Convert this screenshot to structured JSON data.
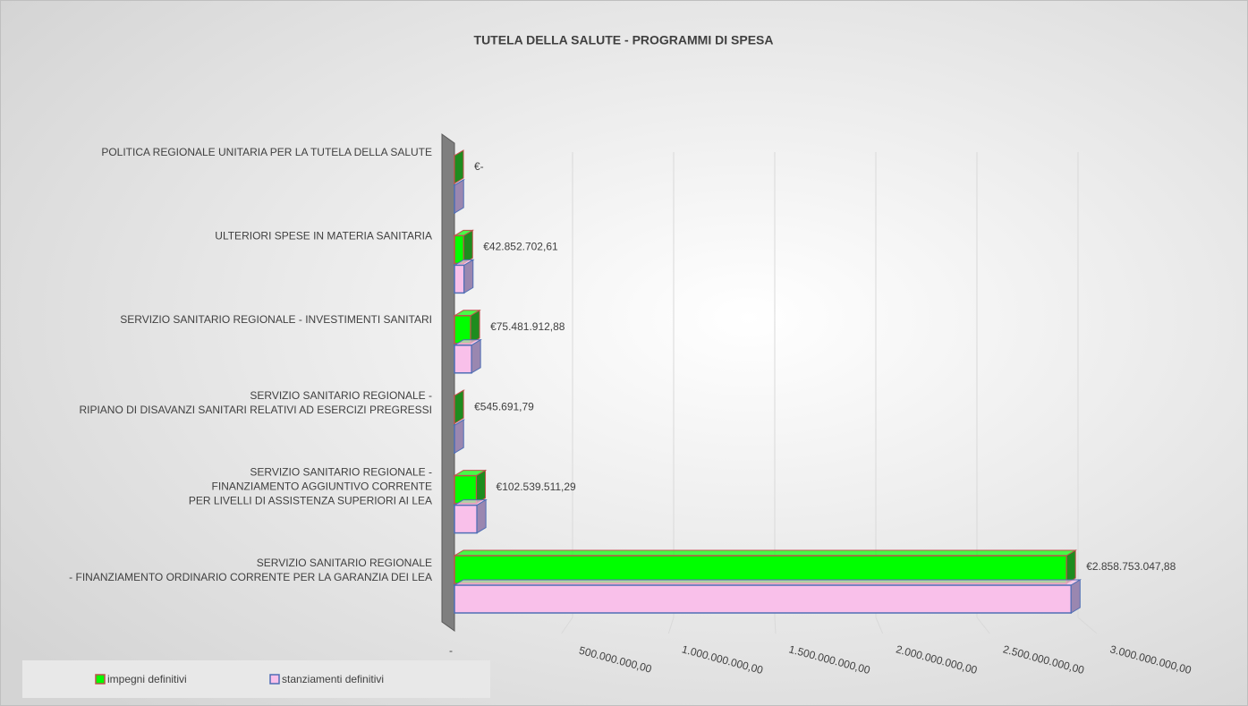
{
  "chart_data": {
    "type": "bar3d-horizontal",
    "title": "TUTELA DELLA SALUTE - PROGRAMMI DI SPESA",
    "categories": [
      "POLITICA REGIONALE UNITARIA PER LA TUTELA DELLA SALUTE",
      "ULTERIORI SPESE IN MATERIA SANITARIA",
      "SERVIZIO SANITARIO REGIONALE - INVESTIMENTI SANITARI",
      "SERVIZIO SANITARIO REGIONALE -\nRIPIANO DI DISAVANZI SANITARI RELATIVI AD ESERCIZI PREGRESSI",
      "SERVIZIO SANITARIO REGIONALE -\nFINANZIAMENTO AGGIUNTIVO CORRENTE\nPER LIVELLI DI ASSISTENZA SUPERIORI AI LEA",
      "SERVIZIO SANITARIO REGIONALE\n- FINANZIAMENTO ORDINARIO CORRENTE PER LA GARANZIA DEI LEA"
    ],
    "series": [
      {
        "name": "impegni definitivi",
        "color": "#00ff00",
        "edge": "#c0504d",
        "values": [
          0,
          42852702.61,
          75481912.88,
          545691.79,
          102539511.29,
          2858753047.88
        ],
        "value_labels": [
          "€-",
          "€42.852.702,61",
          "€75.481.912,88",
          "€545.691,79",
          "€102.539.511,29",
          "€2.858.753.047,88"
        ]
      },
      {
        "name": "stanziamenti definitivi",
        "color": "#f9c0ea",
        "edge": "#4f6eb5",
        "values": [
          1000000,
          45000000,
          80000000,
          1000000,
          105000000,
          2880000000
        ]
      }
    ],
    "xlim": [
      0,
      3000000000
    ],
    "xticks": [
      {
        "value": 0,
        "label": "-"
      },
      {
        "value": 500000000,
        "label": "500.000.000,00"
      },
      {
        "value": 1000000000,
        "label": "1.000.000.000,00"
      },
      {
        "value": 1500000000,
        "label": "1.500.000.000,00"
      },
      {
        "value": 2000000000,
        "label": "2.000.000.000,00"
      },
      {
        "value": 2500000000,
        "label": "2.500.000.000,00"
      },
      {
        "value": 3000000000,
        "label": "3.000.000.000,00"
      }
    ],
    "grid": true,
    "legend": "bottom-left"
  }
}
